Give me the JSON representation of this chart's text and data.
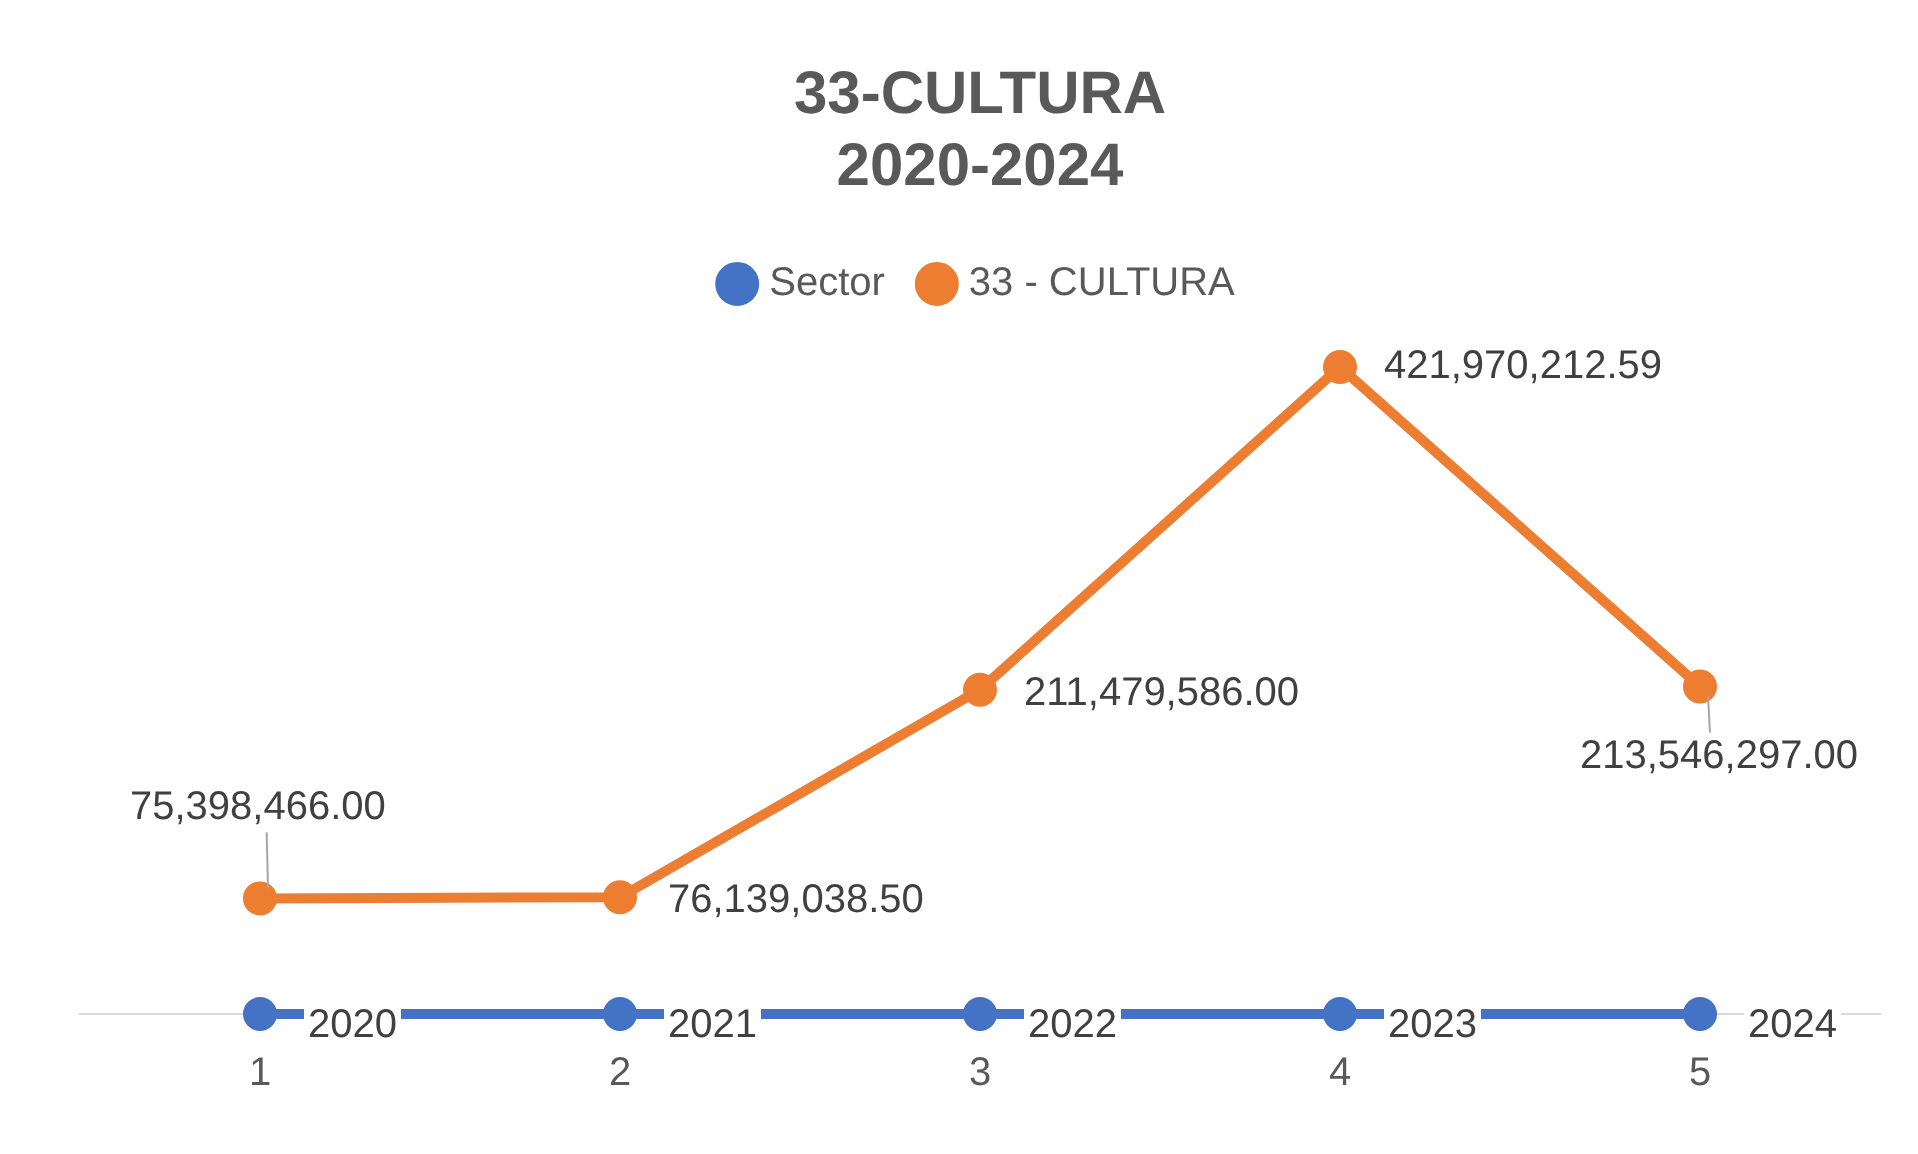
{
  "chart_data": {
    "type": "line",
    "title": "33-CULTURA\n2020-2024",
    "categories": [
      "1",
      "2",
      "3",
      "4",
      "5"
    ],
    "legend": "top",
    "marker": "circle",
    "line_style": "solid",
    "series": [
      {
        "name": "Sector",
        "color": "#4472c4",
        "values": [
          2020,
          2021,
          2022,
          2023,
          2024
        ],
        "value_labels": [
          "2020",
          "2021",
          "2022",
          "2023",
          "2024"
        ]
      },
      {
        "name": "33 - CULTURA",
        "color": "#ed7d31",
        "values": [
          75398466.0,
          76139038.5,
          211479586.0,
          421970212.59,
          213546297.0
        ],
        "value_labels": [
          "75,398,466.00",
          "76,139,038.50",
          "211,479,586.00",
          "421,970,212.59",
          "213,546,297.00"
        ]
      }
    ]
  }
}
